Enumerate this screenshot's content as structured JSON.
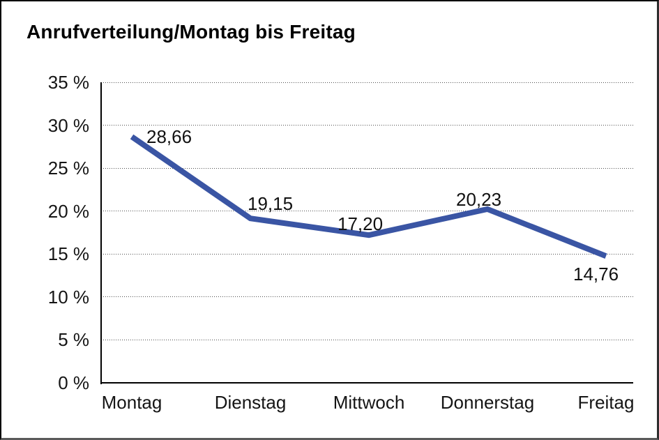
{
  "window": {
    "background": "#ffffff",
    "frame_color": "#000000"
  },
  "chart_data": {
    "type": "line",
    "title": "Anrufverteilung/Montag bis Freitag",
    "xlabel": "",
    "ylabel": "",
    "categories": [
      "Montag",
      "Dienstag",
      "Mittwoch",
      "Donnerstag",
      "Freitag"
    ],
    "series": [
      {
        "name": "Anrufverteilung",
        "values": [
          28.66,
          19.15,
          17.2,
          20.23,
          14.76
        ]
      }
    ],
    "data_labels": [
      "28,66",
      "19,15",
      "17,20",
      "20,23",
      "14,76"
    ],
    "y_ticks": [
      "35 %",
      "30 %",
      "25 %",
      "20 %",
      "15 %",
      "10 %",
      "5 %",
      "0 %"
    ],
    "y_tick_values": [
      35,
      30,
      25,
      20,
      15,
      10,
      5,
      0
    ],
    "ylim": [
      0,
      35
    ],
    "grid": "horizontal-dotted",
    "legend_position": "none",
    "line_color": "#3A55A4",
    "axis_color": "#000000",
    "gridline_color": "#4d4d4d",
    "text_color": "#111111"
  }
}
